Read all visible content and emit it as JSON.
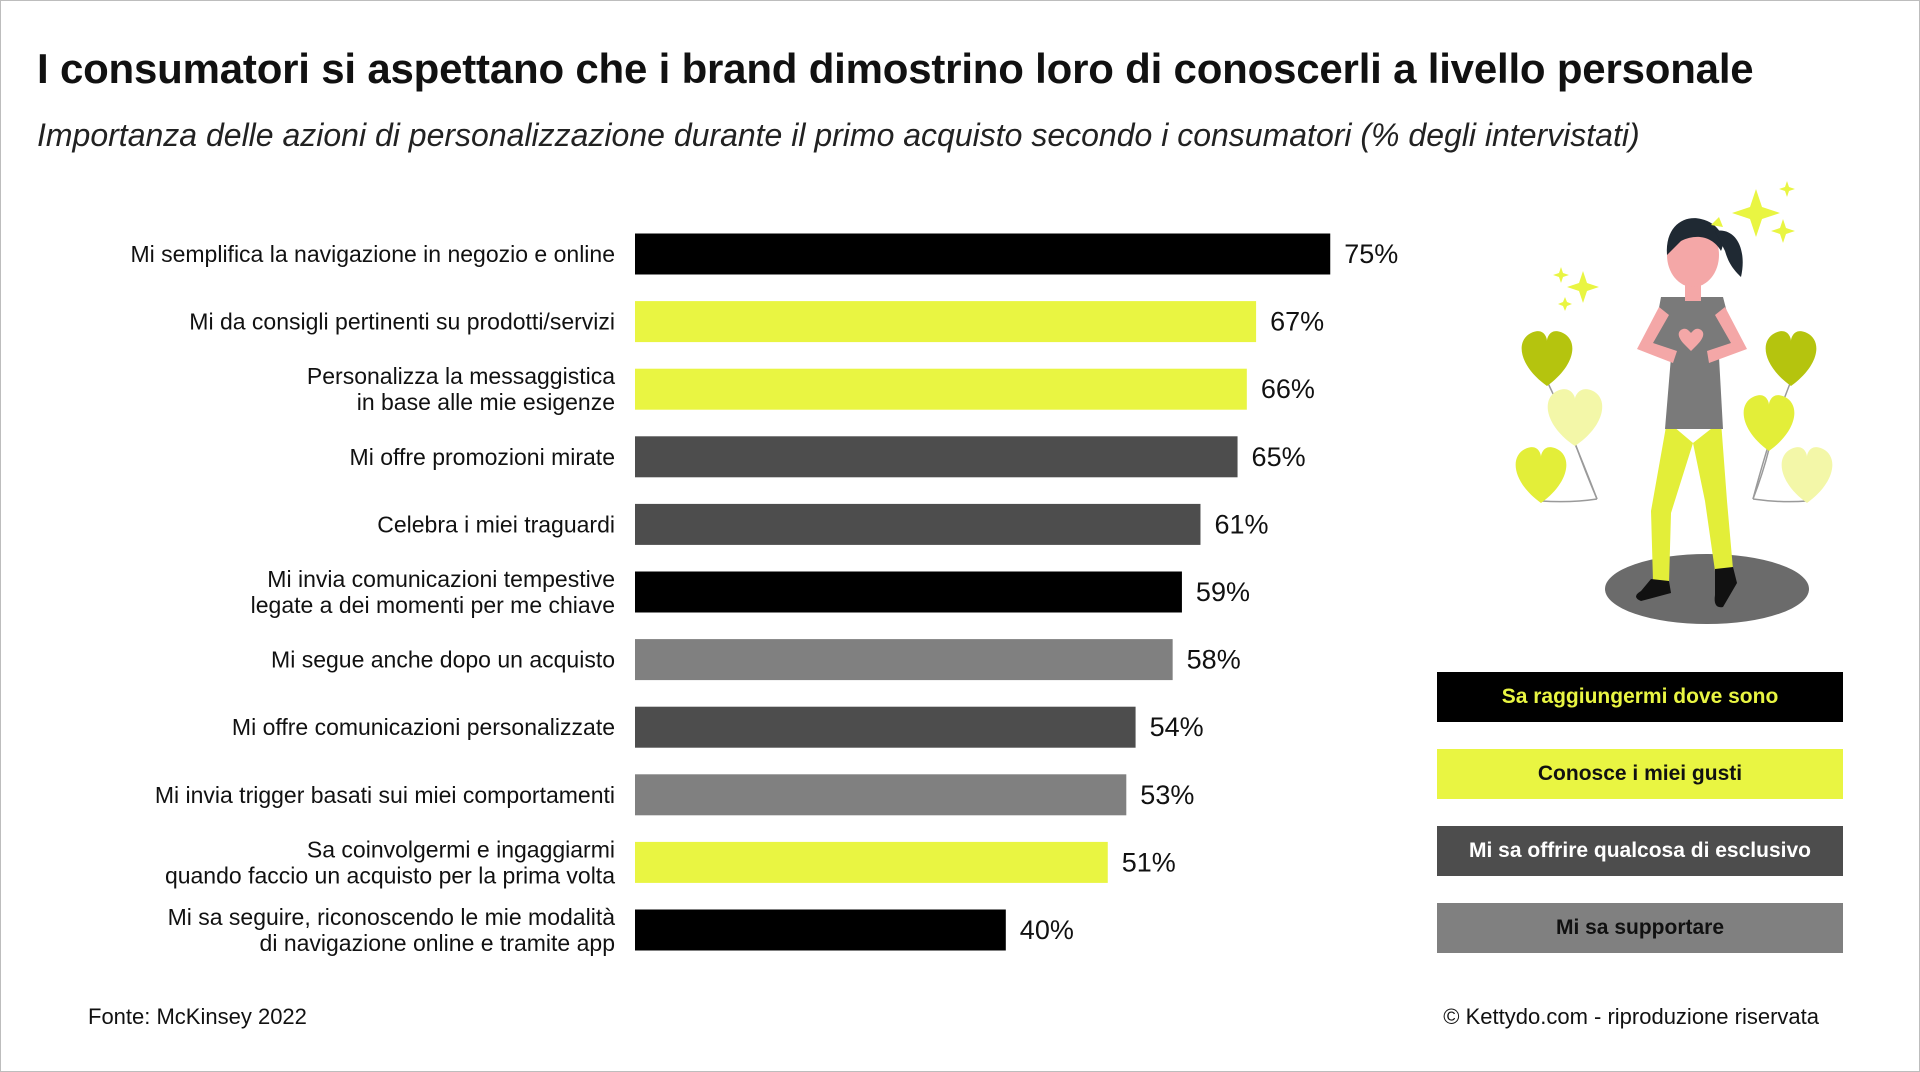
{
  "header": {
    "title": "I consumatori si aspettano che i brand dimostrino loro di conoscerli a livello personale",
    "subtitle": "Importanza delle azioni di personalizzazione durante il primo acquisto secondo i consumatori (% degli intervistati)"
  },
  "chart_data": {
    "type": "bar",
    "orientation": "horizontal",
    "title": "I consumatori si aspettano che i brand dimostrino loro di conoscerli a livello personale",
    "subtitle": "Importanza delle azioni di personalizzazione durante il primo acquisto secondo i consumatori (% degli intervistati)",
    "xlim": [
      0,
      100
    ],
    "grid": false,
    "legend_position": "right",
    "bars": [
      {
        "label": [
          "Mi semplifica la navigazione in negozio e online"
        ],
        "value": 75,
        "display": "75%",
        "group": "Sa raggiungermi dove sono"
      },
      {
        "label": [
          "Mi da consigli pertinenti su prodotti/servizi"
        ],
        "value": 67,
        "display": "67%",
        "group": "Conosce i miei gusti"
      },
      {
        "label": [
          "Personalizza la messaggistica",
          "in base alle mie esigenze"
        ],
        "value": 66,
        "display": "66%",
        "group": "Conosce i miei gusti"
      },
      {
        "label": [
          "Mi offre promozioni mirate"
        ],
        "value": 65,
        "display": "65%",
        "group": "Mi sa offrire qualcosa di esclusivo"
      },
      {
        "label": [
          "Celebra i miei traguardi"
        ],
        "value": 61,
        "display": "61%",
        "group": "Mi sa offrire qualcosa di esclusivo"
      },
      {
        "label": [
          "Mi invia comunicazioni tempestive",
          "legate a dei momenti per me chiave"
        ],
        "value": 59,
        "display": "59%",
        "group": "Sa raggiungermi dove sono"
      },
      {
        "label": [
          "Mi segue anche dopo un acquisto"
        ],
        "value": 58,
        "display": "58%",
        "group": "Mi sa supportare"
      },
      {
        "label": [
          "Mi offre comunicazioni personalizzate"
        ],
        "value": 54,
        "display": "54%",
        "group": "Mi sa offrire qualcosa di esclusivo"
      },
      {
        "label": [
          "Mi invia trigger basati sui miei comportamenti"
        ],
        "value": 53,
        "display": "53%",
        "group": "Mi sa supportare"
      },
      {
        "label": [
          "Sa coinvolgermi e ingaggiarmi",
          "quando faccio un acquisto per la prima volta"
        ],
        "value": 51,
        "display": "51%",
        "group": "Conosce i miei gusti"
      },
      {
        "label": [
          "Mi sa seguire, riconoscendo le mie modalità",
          "di navigazione online e tramite app"
        ],
        "value": 40,
        "display": "40%",
        "group": "Sa raggiungermi dove sono"
      }
    ],
    "legend": [
      {
        "name": "Sa raggiungermi dove sono",
        "color": "#000000",
        "text_color": "#e9f542"
      },
      {
        "name": "Conosce i miei gusti",
        "color": "#e9f542",
        "text_color": "#111111"
      },
      {
        "name": "Mi sa offrire qualcosa di esclusivo",
        "color": "#4d4d4d",
        "text_color": "#ffffff"
      },
      {
        "name": "Mi sa supportare",
        "color": "#808080",
        "text_color": "#111111"
      }
    ]
  },
  "footer": {
    "source": "Fonte: McKinsey 2022",
    "copyright": "© Kettydo.com - riproduzione riservata"
  },
  "illustration": {
    "icon": "woman-heart-balloons-illustration"
  }
}
